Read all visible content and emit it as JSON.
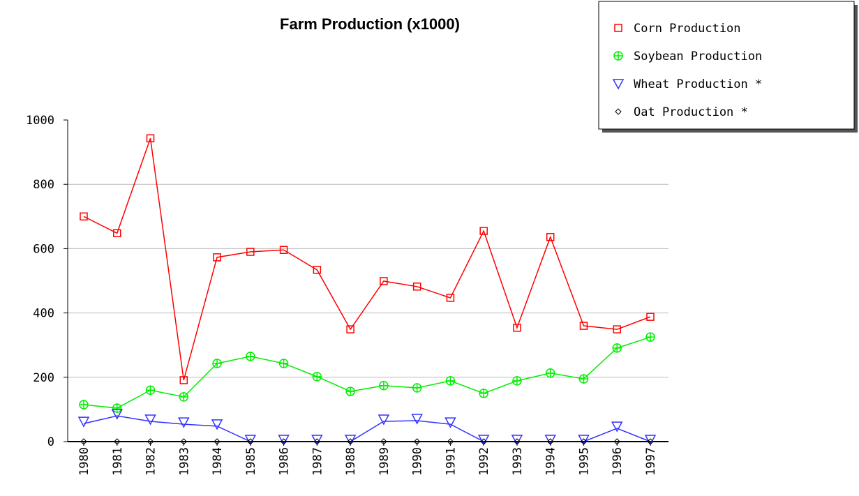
{
  "chart_data": {
    "type": "line",
    "title": "Farm Production (x1000)",
    "categories": [
      "1980",
      "1981",
      "1982",
      "1983",
      "1984",
      "1985",
      "1986",
      "1987",
      "1988",
      "1989",
      "1990",
      "1991",
      "1992",
      "1993",
      "1994",
      "1995",
      "1996",
      "1997"
    ],
    "series": [
      {
        "name": "Corn Production",
        "color": "#ff0000",
        "marker": "square",
        "values": [
          700,
          648,
          943,
          191,
          573,
          590,
          596,
          534,
          349,
          499,
          482,
          447,
          655,
          354,
          636,
          360,
          349,
          388
        ]
      },
      {
        "name": "Soybean Production",
        "color": "#00ee00",
        "marker": "circle",
        "values": [
          115,
          104,
          160,
          139,
          243,
          265,
          243,
          202,
          156,
          174,
          167,
          189,
          150,
          189,
          213,
          195,
          291,
          325
        ]
      },
      {
        "name": "Wheat Production *",
        "color": "#3333ff",
        "marker": "triangle",
        "values": [
          56,
          80,
          63,
          54,
          48,
          0,
          0,
          0,
          0,
          63,
          65,
          54,
          0,
          0,
          0,
          0,
          41,
          0
        ]
      },
      {
        "name": "Oat Production *",
        "color": "#000000",
        "marker": "diamond",
        "values": [
          0,
          0,
          0,
          0,
          0,
          0,
          0,
          0,
          0,
          0,
          0,
          0,
          0,
          0,
          0,
          0,
          0,
          0
        ]
      }
    ],
    "ylim": [
      0,
      1000
    ],
    "yticks": [
      0,
      200,
      400,
      600,
      800,
      1000
    ],
    "grid": true,
    "legend": "top-right"
  }
}
